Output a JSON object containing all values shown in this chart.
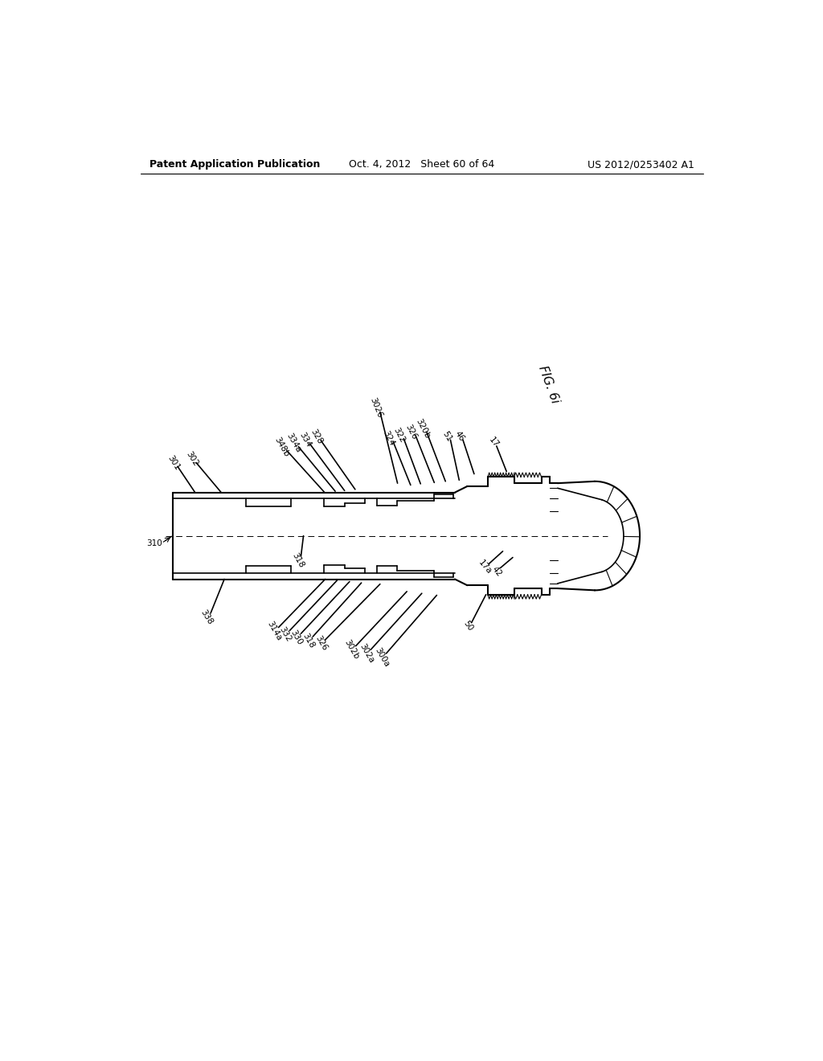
{
  "background_color": "#ffffff",
  "header_left": "Patent Application Publication",
  "header_center": "Oct. 4, 2012   Sheet 60 of 64",
  "header_right": "US 2012/0253402 A1",
  "fig_label": "FIG. 6i",
  "header_fontsize": 9,
  "fig_label_fontsize": 11,
  "label_fontsize": 7.5,
  "lw_thick": 1.5,
  "lw_medium": 1.2,
  "lw_thin": 0.8
}
